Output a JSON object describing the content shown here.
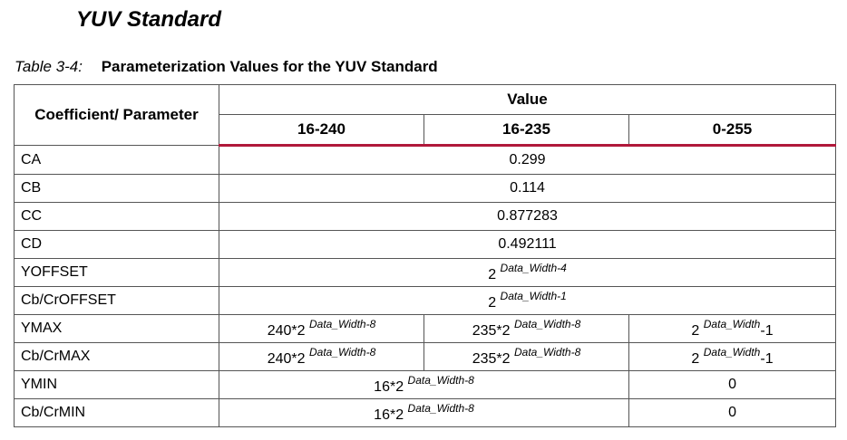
{
  "heading": "YUV Standard",
  "caption": {
    "number": "Table 3-4:",
    "title": "Parameterization Values for the YUV Standard"
  },
  "table": {
    "header": {
      "param": "Coefficient/ Parameter",
      "value": "Value",
      "ranges": [
        "16-240",
        "16-235",
        "0-255"
      ]
    },
    "rows": {
      "ca": {
        "label": "CA",
        "value": "0.299"
      },
      "cb": {
        "label": "CB",
        "value": "0.114"
      },
      "cc": {
        "label": "CC",
        "value": "0.877283"
      },
      "cd": {
        "label": "CD",
        "value": "0.492111"
      },
      "yoffset": {
        "label": "YOFFSET",
        "base": "2 ",
        "exp": "Data_Width-4"
      },
      "cbcroffset": {
        "label": "Cb/CrOFFSET",
        "base": "2 ",
        "exp": "Data_Width-1"
      },
      "ymax": {
        "label": "YMAX",
        "v1_base": "240*2 ",
        "v1_exp": "Data_Width-8",
        "v2_base": "235*2 ",
        "v2_exp": "Data_Width-8",
        "v3_base": "2 ",
        "v3_exp": "Data_Width",
        "v3_tail": "-1"
      },
      "cbcrmax": {
        "label": "Cb/CrMAX",
        "v1_base": "240*2 ",
        "v1_exp": "Data_Width-8",
        "v2_base": "235*2 ",
        "v2_exp": "Data_Width-8",
        "v3_base": "2 ",
        "v3_exp": "Data_Width",
        "v3_tail": "-1"
      },
      "ymin": {
        "label": "YMIN",
        "v12_base": "16*2 ",
        "v12_exp": "Data_Width-8",
        "v3": "0"
      },
      "cbcrmin": {
        "label": "Cb/CrMIN",
        "v12_base": "16*2 ",
        "v12_exp": "Data_Width-8",
        "v3": "0"
      }
    }
  }
}
